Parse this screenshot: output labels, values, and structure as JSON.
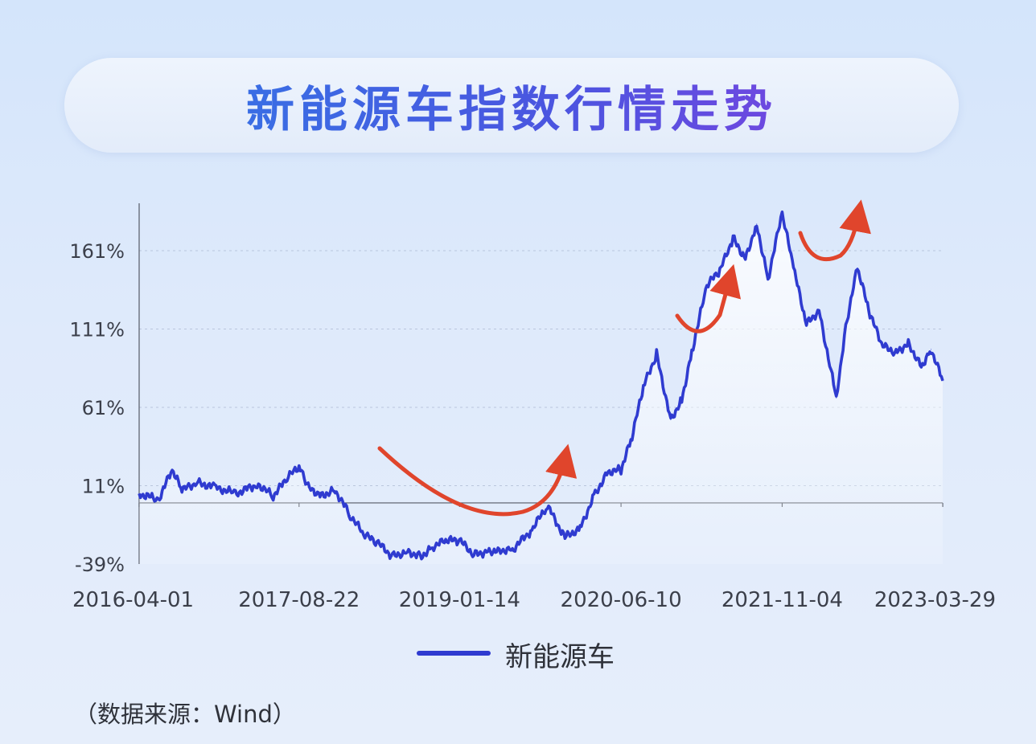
{
  "title": "新能源车指数行情走势",
  "source_note": "（数据来源：Wind）",
  "colors": {
    "line": "#2f3bd0",
    "arrow": "#e0452c",
    "title_start": "#2f7ce6",
    "title_end": "#8a3ee0"
  },
  "chart_data": {
    "type": "line",
    "title": "新能源车指数行情走势",
    "xlabel": "",
    "ylabel": "",
    "x_ticks": [
      "2016-04-01",
      "2017-08-22",
      "2019-01-14",
      "2020-06-10",
      "2021-11-04",
      "2023-03-29"
    ],
    "y_ticks": [
      "-39%",
      "11%",
      "61%",
      "111%",
      "161%"
    ],
    "ylim": [
      -39,
      200
    ],
    "grid": "horizontal dashed",
    "legend": "bottom-center",
    "series": [
      {
        "name": "新能源车",
        "unit": "%",
        "x": [
          "2016-04-01",
          "2016-06-01",
          "2016-07-15",
          "2016-08-15",
          "2016-10-01",
          "2016-12-01",
          "2017-02-01",
          "2017-04-15",
          "2017-06-01",
          "2017-07-15",
          "2017-08-22",
          "2017-09-20",
          "2017-11-01",
          "2017-12-15",
          "2018-02-01",
          "2018-03-15",
          "2018-05-01",
          "2018-06-15",
          "2018-08-01",
          "2018-09-15",
          "2018-10-20",
          "2018-12-01",
          "2019-01-14",
          "2019-03-01",
          "2019-04-10",
          "2019-05-20",
          "2019-07-01",
          "2019-09-01",
          "2019-10-20",
          "2019-12-15",
          "2020-02-01",
          "2020-03-20",
          "2020-04-30",
          "2020-06-10",
          "2020-07-15",
          "2020-08-20",
          "2020-10-01",
          "2020-11-15",
          "2020-12-20",
          "2021-01-25",
          "2021-03-10",
          "2021-04-20",
          "2021-06-01",
          "2021-07-10",
          "2021-08-15",
          "2021-09-20",
          "2021-11-04",
          "2021-12-10",
          "2022-01-20",
          "2022-03-01",
          "2022-04-25",
          "2022-05-25",
          "2022-07-01",
          "2022-08-10",
          "2022-09-20",
          "2022-11-01",
          "2022-12-10",
          "2023-01-20",
          "2023-02-20",
          "2023-03-29"
        ],
        "values": [
          6,
          2,
          21,
          8,
          13,
          10,
          6,
          12,
          4,
          16,
          23,
          10,
          5,
          8,
          -8,
          -20,
          -26,
          -34,
          -31,
          -34,
          -28,
          -24,
          -24,
          -33,
          -31,
          -30,
          -30,
          -17,
          -2,
          -22,
          -16,
          6,
          20,
          21,
          42,
          74,
          95,
          53,
          66,
          100,
          139,
          148,
          169,
          156,
          178,
          143,
          185,
          150,
          114,
          123,
          67,
          113,
          150,
          120,
          100,
          96,
          102,
          87,
          98,
          78
        ]
      }
    ]
  },
  "legend": {
    "label": "新能源车"
  }
}
